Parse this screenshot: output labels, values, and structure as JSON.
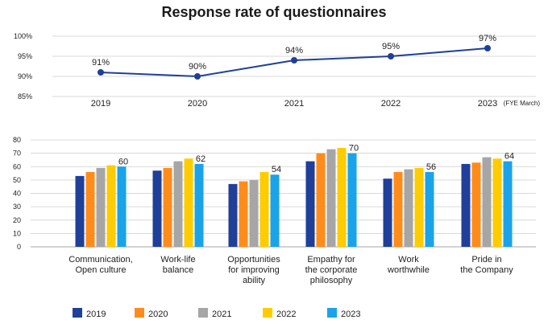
{
  "title": "Response rate of questionnaires",
  "colors": {
    "line": "#1f3f99",
    "grid": "#cccccc",
    "axis": "#555555",
    "text": "#222222"
  },
  "chart_data": [
    {
      "type": "line",
      "title": "Response rate of questionnaires",
      "x": [
        "2019",
        "2020",
        "2021",
        "2022",
        "2023"
      ],
      "values": [
        91,
        90,
        94,
        95,
        97
      ],
      "data_labels": [
        "91%",
        "90%",
        "94%",
        "95%",
        "97%"
      ],
      "y_ticks": [
        "100%",
        "95%",
        "90%",
        "85%"
      ],
      "y_tick_values": [
        100,
        95,
        90,
        85
      ],
      "ylim": [
        85,
        100
      ],
      "unit_note": "(FYE March)",
      "grid": true
    },
    {
      "type": "bar",
      "categories": [
        [
          "Communication,",
          "Open culture"
        ],
        [
          "Work-life",
          "balance"
        ],
        [
          "Opportunities",
          "for improving",
          "ability"
        ],
        [
          "Empathy for",
          "the corporate",
          "philosophy"
        ],
        [
          "Work",
          "worthwhile"
        ],
        [
          "Pride in",
          "the Company"
        ]
      ],
      "series": [
        {
          "name": "2019",
          "color": "#1f3f99",
          "values": [
            53,
            57,
            47,
            64,
            51,
            62
          ]
        },
        {
          "name": "2020",
          "color": "#ff8c1a",
          "values": [
            56,
            59,
            49,
            70,
            56,
            63
          ]
        },
        {
          "name": "2021",
          "color": "#a6a6a6",
          "values": [
            59,
            64,
            50,
            73,
            58,
            67
          ]
        },
        {
          "name": "2022",
          "color": "#ffcc00",
          "values": [
            61,
            66,
            56,
            74,
            59,
            66
          ]
        },
        {
          "name": "2023",
          "color": "#1aa3e8",
          "values": [
            60,
            62,
            54,
            70,
            56,
            64
          ]
        }
      ],
      "data_labels": [
        "60",
        "62",
        "54",
        "70",
        "56",
        "64"
      ],
      "y_ticks": [
        "80",
        "70",
        "60",
        "50",
        "40",
        "30",
        "20",
        "10",
        "0"
      ],
      "y_tick_values": [
        80,
        70,
        60,
        50,
        40,
        30,
        20,
        10,
        0
      ],
      "ylim": [
        0,
        80
      ],
      "legend_position": "bottom",
      "grid": true
    }
  ]
}
